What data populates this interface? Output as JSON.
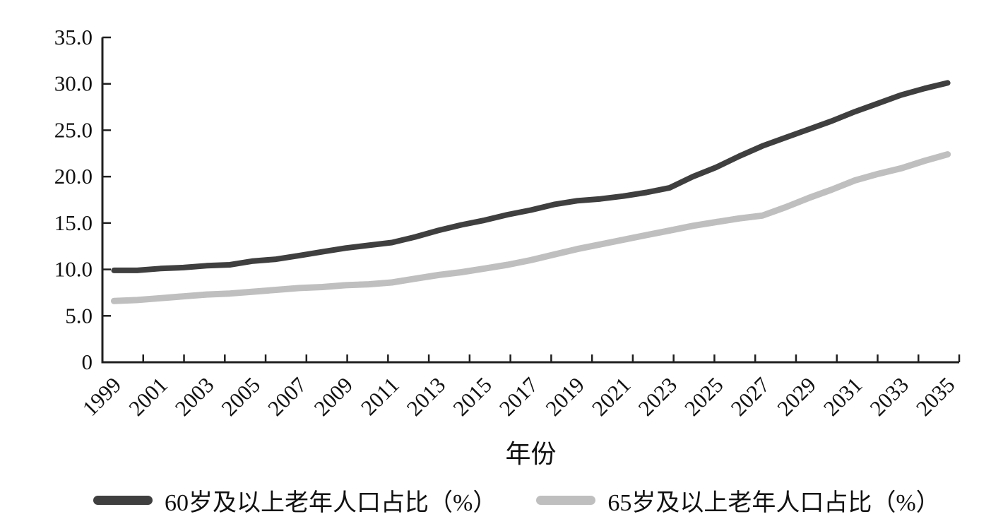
{
  "chart_data": {
    "type": "line",
    "title": "",
    "xlabel": "年份",
    "ylabel": "",
    "grid": false,
    "legend_position": "bottom",
    "ylim": [
      0,
      35
    ],
    "y_tick_labels": [
      "0",
      "5.0",
      "10.0",
      "15.0",
      "20.0",
      "25.0",
      "30.0",
      "35.0"
    ],
    "x": [
      1999,
      2000,
      2001,
      2002,
      2003,
      2004,
      2005,
      2006,
      2007,
      2008,
      2009,
      2010,
      2011,
      2012,
      2013,
      2014,
      2015,
      2016,
      2017,
      2018,
      2019,
      2020,
      2021,
      2022,
      2023,
      2024,
      2025,
      2026,
      2027,
      2028,
      2029,
      2030,
      2031,
      2032,
      2033,
      2034,
      2035
    ],
    "x_tick_labels": [
      "1999",
      "2001",
      "2003",
      "2005",
      "2007",
      "2009",
      "2011",
      "2013",
      "2015",
      "2017",
      "2019",
      "2021",
      "2023",
      "2025",
      "2027",
      "2029",
      "2031",
      "2033",
      "2035"
    ],
    "series": [
      {
        "name": "60岁及以上老年人口占比（%）",
        "color": "#3f3f3f",
        "line_width": 8,
        "values": [
          9.9,
          9.9,
          10.1,
          10.2,
          10.4,
          10.5,
          10.9,
          11.1,
          11.5,
          11.9,
          12.3,
          12.6,
          12.9,
          13.5,
          14.2,
          14.8,
          15.3,
          15.9,
          16.4,
          17.0,
          17.4,
          17.6,
          17.9,
          18.3,
          18.8,
          20.0,
          21.0,
          22.2,
          23.3,
          24.2,
          25.1,
          26.0,
          27.0,
          27.9,
          28.8,
          29.5,
          30.1
        ]
      },
      {
        "name": "65岁及以上老年人口占比（%）",
        "color": "#bfbfbf",
        "line_width": 9,
        "values": [
          6.6,
          6.7,
          6.9,
          7.1,
          7.3,
          7.4,
          7.6,
          7.8,
          8.0,
          8.1,
          8.3,
          8.4,
          8.6,
          9.0,
          9.4,
          9.7,
          10.1,
          10.5,
          11.0,
          11.6,
          12.2,
          12.7,
          13.2,
          13.7,
          14.2,
          14.7,
          15.1,
          15.5,
          15.8,
          16.7,
          17.7,
          18.6,
          19.6,
          20.3,
          20.9,
          21.7,
          22.4
        ]
      }
    ],
    "axis_color": "#1f1f1f"
  }
}
